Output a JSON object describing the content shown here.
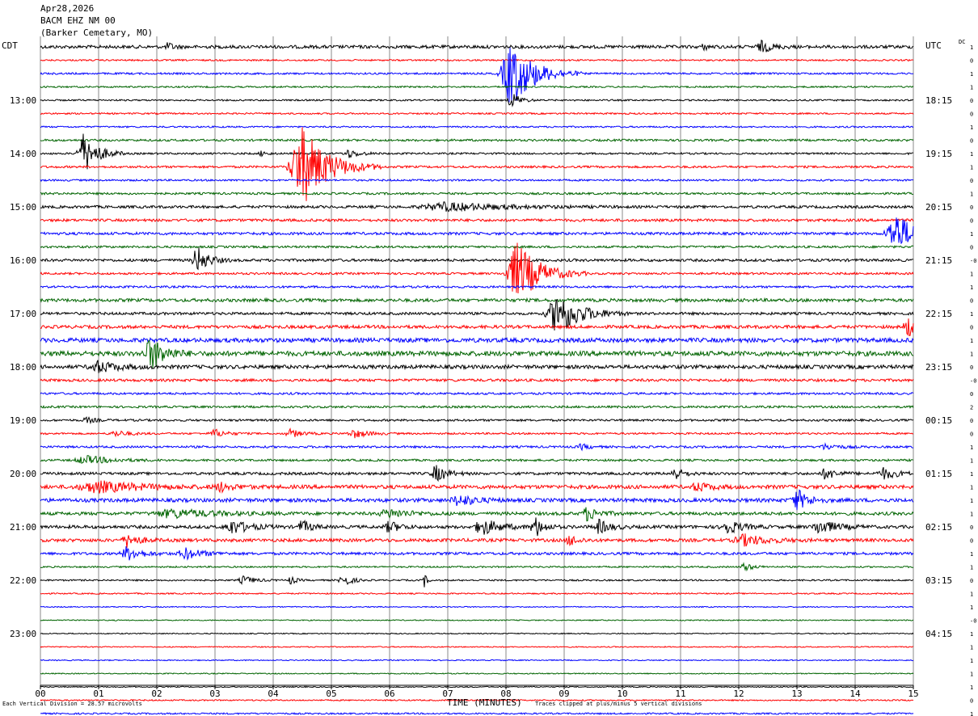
{
  "header": {
    "date": "Apr28,2026",
    "station": "BACM EHZ NM 00",
    "location": "(Barker Cemetary, MO)"
  },
  "left_tz": "CDT",
  "right_tz": "UTC",
  "dc_label": "DC",
  "footer": {
    "scale": "Each Vertical Division =   28.57 microvolts",
    "xlabel": "TIME (MINUTES)",
    "clip_note": "Traces clipped at plus/minus 5 vertical divisions"
  },
  "colors": {
    "black": "#000000",
    "red": "#ff0000",
    "blue": "#0000ff",
    "green": "#006400",
    "grid": "#888888"
  },
  "chart_data": {
    "type": "line",
    "title": "BACM EHZ NM 00 helicorder",
    "xlabel": "TIME (MINUTES)",
    "xlim": [
      0,
      15
    ],
    "x_ticks": [
      "00",
      "01",
      "02",
      "03",
      "04",
      "05",
      "06",
      "07",
      "08",
      "09",
      "10",
      "11",
      "12",
      "13",
      "14",
      "15"
    ],
    "trace_minutes": 15,
    "trace_colors": [
      "black",
      "red",
      "blue",
      "green"
    ],
    "left_hour_labels": [
      "13:00",
      "14:00",
      "15:00",
      "16:00",
      "17:00",
      "18:00",
      "19:00",
      "20:00",
      "21:00",
      "22:00",
      "23:00"
    ],
    "right_hour_labels": [
      "18:15",
      "19:15",
      "20:15",
      "21:15",
      "22:15",
      "23:15",
      "00:15",
      "01:15",
      "02:15",
      "03:15",
      "04:15"
    ],
    "dc_values": [
      "1",
      "0",
      "1",
      "1",
      "0",
      "0",
      "1",
      "0",
      "1",
      "1",
      "0",
      "1",
      "0",
      "0",
      "1",
      "0",
      "-0",
      "1",
      "1",
      "0",
      "1",
      "0",
      "1",
      "1",
      "0",
      "-0",
      "0",
      "2",
      "0",
      "0",
      "1",
      "1",
      "1",
      "1",
      "1",
      "1",
      "0",
      "0",
      "1",
      "1",
      "0",
      "1",
      "1",
      "-0",
      "1",
      "1",
      "1",
      "1",
      "1",
      "0",
      "1",
      "1"
    ],
    "events": [
      {
        "trace": 0,
        "minute": 2.2,
        "amp": 0.3,
        "dur": 0.2
      },
      {
        "trace": 0,
        "minute": 12.4,
        "amp": 0.4,
        "dur": 0.4
      },
      {
        "trace": 0,
        "minute": 11.4,
        "amp": 0.2,
        "dur": 0.2
      },
      {
        "trace": 2,
        "minute": 8.1,
        "amp": 2.5,
        "dur": 0.8
      },
      {
        "trace": 4,
        "minute": 8.1,
        "amp": 0.6,
        "dur": 0.3
      },
      {
        "trace": 8,
        "minute": 0.75,
        "amp": 1.5,
        "dur": 0.5
      },
      {
        "trace": 8,
        "minute": 5.3,
        "amp": 0.3,
        "dur": 0.4
      },
      {
        "trace": 8,
        "minute": 3.8,
        "amp": 0.2,
        "dur": 0.2
      },
      {
        "trace": 9,
        "minute": 4.5,
        "amp": 3.0,
        "dur": 0.9
      },
      {
        "trace": 12,
        "minute": 7.0,
        "amp": 0.3,
        "dur": 2.0
      },
      {
        "trace": 14,
        "minute": 14.7,
        "amp": 1.5,
        "dur": 0.7
      },
      {
        "trace": 16,
        "minute": 2.7,
        "amp": 1.0,
        "dur": 0.4
      },
      {
        "trace": 17,
        "minute": 8.2,
        "amp": 2.3,
        "dur": 0.8
      },
      {
        "trace": 20,
        "minute": 8.9,
        "amp": 1.6,
        "dur": 0.8
      },
      {
        "trace": 21,
        "minute": 14.9,
        "amp": 0.8,
        "dur": 0.3
      },
      {
        "trace": 23,
        "minute": 1.9,
        "amp": 1.2,
        "dur": 0.5
      },
      {
        "trace": 24,
        "minute": 1.0,
        "amp": 0.4,
        "dur": 0.7
      },
      {
        "trace": 28,
        "minute": 0.8,
        "amp": 0.2,
        "dur": 0.3
      },
      {
        "trace": 29,
        "minute": 3.0,
        "amp": 0.3,
        "dur": 0.4
      },
      {
        "trace": 29,
        "minute": 4.3,
        "amp": 0.3,
        "dur": 0.4
      },
      {
        "trace": 29,
        "minute": 5.4,
        "amp": 0.3,
        "dur": 0.5
      },
      {
        "trace": 29,
        "minute": 1.3,
        "amp": 0.2,
        "dur": 0.5
      },
      {
        "trace": 30,
        "minute": 9.3,
        "amp": 0.2,
        "dur": 0.3
      },
      {
        "trace": 30,
        "minute": 13.5,
        "amp": 0.2,
        "dur": 0.5
      },
      {
        "trace": 31,
        "minute": 0.8,
        "amp": 0.3,
        "dur": 0.9
      },
      {
        "trace": 32,
        "minute": 6.8,
        "amp": 0.6,
        "dur": 0.4
      },
      {
        "trace": 32,
        "minute": 10.9,
        "amp": 0.5,
        "dur": 0.3
      },
      {
        "trace": 32,
        "minute": 13.5,
        "amp": 0.4,
        "dur": 0.4
      },
      {
        "trace": 32,
        "minute": 14.5,
        "amp": 0.4,
        "dur": 0.5
      },
      {
        "trace": 33,
        "minute": 1.0,
        "amp": 0.4,
        "dur": 1.5
      },
      {
        "trace": 33,
        "minute": 3.1,
        "amp": 0.3,
        "dur": 0.5
      },
      {
        "trace": 33,
        "minute": 11.3,
        "amp": 0.3,
        "dur": 0.5
      },
      {
        "trace": 34,
        "minute": 7.2,
        "amp": 0.4,
        "dur": 0.6
      },
      {
        "trace": 34,
        "minute": 13.0,
        "amp": 0.8,
        "dur": 0.4
      },
      {
        "trace": 35,
        "minute": 2.3,
        "amp": 0.3,
        "dur": 1.5
      },
      {
        "trace": 35,
        "minute": 6.0,
        "amp": 0.3,
        "dur": 0.8
      },
      {
        "trace": 35,
        "minute": 9.4,
        "amp": 0.5,
        "dur": 0.4
      },
      {
        "trace": 36,
        "minute": 3.3,
        "amp": 0.5,
        "dur": 0.6
      },
      {
        "trace": 36,
        "minute": 4.5,
        "amp": 0.5,
        "dur": 0.3
      },
      {
        "trace": 36,
        "minute": 6.0,
        "amp": 0.4,
        "dur": 0.4
      },
      {
        "trace": 36,
        "minute": 7.6,
        "amp": 0.6,
        "dur": 0.6
      },
      {
        "trace": 36,
        "minute": 8.5,
        "amp": 0.8,
        "dur": 0.3
      },
      {
        "trace": 36,
        "minute": 9.6,
        "amp": 0.5,
        "dur": 0.4
      },
      {
        "trace": 36,
        "minute": 11.8,
        "amp": 0.5,
        "dur": 0.5
      },
      {
        "trace": 36,
        "minute": 13.4,
        "amp": 0.5,
        "dur": 0.6
      },
      {
        "trace": 37,
        "minute": 1.5,
        "amp": 0.5,
        "dur": 0.4
      },
      {
        "trace": 37,
        "minute": 9.1,
        "amp": 0.4,
        "dur": 0.3
      },
      {
        "trace": 37,
        "minute": 12.1,
        "amp": 0.4,
        "dur": 0.8
      },
      {
        "trace": 38,
        "minute": 1.5,
        "amp": 0.5,
        "dur": 0.5
      },
      {
        "trace": 38,
        "minute": 2.5,
        "amp": 0.4,
        "dur": 0.6
      },
      {
        "trace": 39,
        "minute": 12.1,
        "amp": 0.3,
        "dur": 0.3
      },
      {
        "trace": 40,
        "minute": 3.5,
        "amp": 0.3,
        "dur": 0.4
      },
      {
        "trace": 40,
        "minute": 4.3,
        "amp": 0.3,
        "dur": 0.2
      },
      {
        "trace": 40,
        "minute": 5.2,
        "amp": 0.5,
        "dur": 0.3
      },
      {
        "trace": 40,
        "minute": 6.6,
        "amp": 0.5,
        "dur": 0.1
      },
      {
        "trace": 51,
        "minute": 12.3,
        "amp": 0.2,
        "dur": 0.2
      }
    ],
    "noise_levels": [
      0.12,
      0.06,
      0.07,
      0.06,
      0.06,
      0.06,
      0.06,
      0.08,
      0.07,
      0.08,
      0.07,
      0.08,
      0.1,
      0.1,
      0.1,
      0.08,
      0.1,
      0.08,
      0.08,
      0.12,
      0.1,
      0.12,
      0.16,
      0.18,
      0.14,
      0.1,
      0.08,
      0.08,
      0.08,
      0.07,
      0.08,
      0.08,
      0.1,
      0.14,
      0.14,
      0.12,
      0.12,
      0.12,
      0.1,
      0.06,
      0.06,
      0.05,
      0.04,
      0.04,
      0.04,
      0.04,
      0.04,
      0.04,
      0.04,
      0.05,
      0.06,
      0.06
    ]
  }
}
